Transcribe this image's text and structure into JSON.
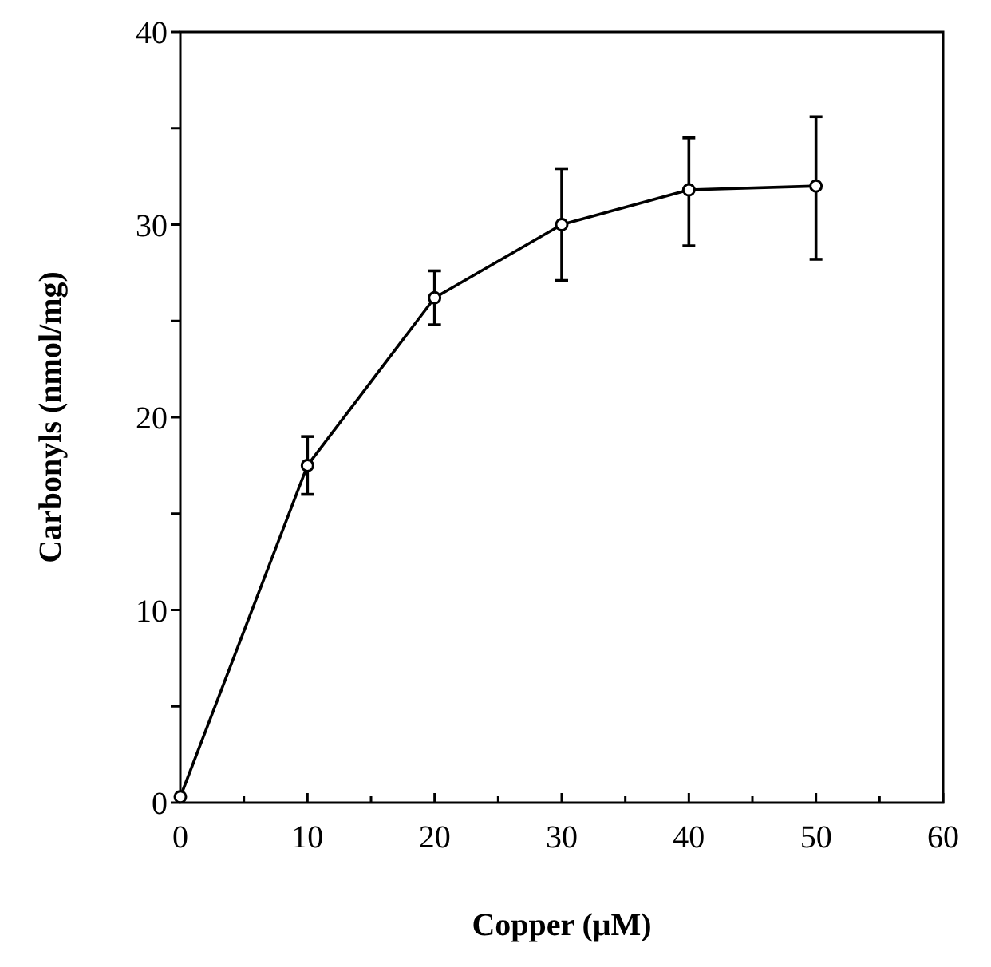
{
  "chart_data": {
    "type": "line",
    "xlabel": "Copper (μM)",
    "ylabel": "Carbonyls (nmol/mg)",
    "x": [
      0,
      10,
      20,
      30,
      40,
      50
    ],
    "series": [
      {
        "color": "#000000",
        "values": [
          0.3,
          17.5,
          26.2,
          30.0,
          31.8,
          32.0
        ],
        "errors": [
          null,
          [
            16.0,
            19.0
          ],
          [
            24.8,
            27.6
          ],
          [
            27.1,
            32.9
          ],
          [
            28.9,
            34.5
          ],
          [
            28.2,
            35.6
          ]
        ]
      }
    ],
    "xlim": [
      0,
      60
    ],
    "xticks": [
      0,
      {
        "value": 5,
        "label": null
      },
      10,
      {
        "value": 15,
        "label": null
      },
      20,
      {
        "value": 25,
        "label": null
      },
      30,
      {
        "value": 35,
        "label": null
      },
      40,
      {
        "value": 45,
        "label": null
      },
      50,
      {
        "value": 55,
        "label": null
      },
      60
    ],
    "ylim": [
      0,
      40
    ],
    "yticks": [
      0,
      {
        "value": 5,
        "label": null
      },
      10,
      {
        "value": 15,
        "label": null
      },
      20,
      {
        "value": 25,
        "label": null
      },
      30,
      {
        "value": 35,
        "label": null
      },
      40
    ],
    "marker": "circle",
    "line_style": "solid"
  }
}
